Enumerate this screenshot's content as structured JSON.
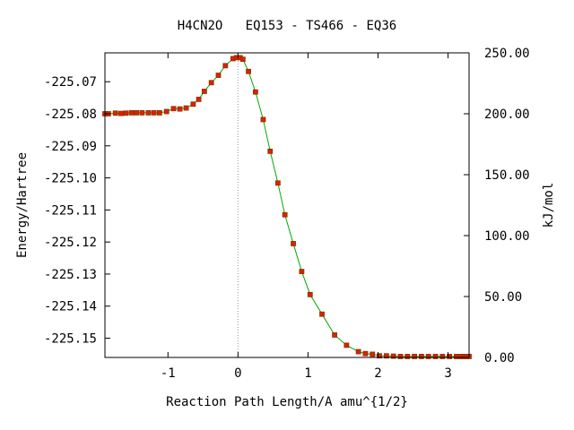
{
  "chart_data": {
    "type": "scatter",
    "title": "H4CN2O   EQ153 - TS466 - EQ36",
    "xlabel": "Reaction Path Length/A amu^{1/2}",
    "ylabel": "Energy/Hartree",
    "y2label": "kJ/mol",
    "xlim": [
      -1.9,
      3.3
    ],
    "ylim": [
      -225.156,
      -225.061
    ],
    "y2lim": [
      0.0,
      250.0
    ],
    "xticks": [
      -1,
      0,
      1,
      2,
      3
    ],
    "xtick_labels": [
      "-1",
      "0",
      "1",
      "2",
      "3"
    ],
    "yticks": [
      -225.07,
      -225.08,
      -225.09,
      -225.1,
      -225.11,
      -225.12,
      -225.13,
      -225.14,
      -225.15
    ],
    "ytick_labels": [
      "-225.07",
      "-225.08",
      "-225.09",
      "-225.10",
      "-225.11",
      "-225.12",
      "-225.13",
      "-225.14",
      "-225.15"
    ],
    "y2ticks": [
      0,
      50,
      100,
      150,
      200,
      250
    ],
    "y2tick_labels": [
      "0.00",
      "50.00",
      "100.00",
      "150.00",
      "200.00",
      "250.00"
    ],
    "ts_marker_x": 0.0,
    "grid": false,
    "legend": false,
    "colors": {
      "line": "#00aa00",
      "point_fill": "#dd2200",
      "point_edge": "#883300",
      "ts_line": "#999999"
    },
    "series": [
      {
        "x": [
          -1.9,
          -1.85,
          -1.75,
          -1.67,
          -1.6,
          -1.52,
          -1.45,
          -1.37,
          -1.28,
          -1.2,
          -1.12,
          -1.02,
          -0.92,
          -0.83,
          -0.74,
          -0.64,
          -0.56,
          -0.48,
          -0.38,
          -0.28,
          -0.18,
          -0.07,
          -0.02,
          0.03,
          0.07,
          0.15,
          0.25,
          0.36,
          0.46,
          0.57,
          0.67,
          0.79,
          0.91,
          1.03,
          1.2,
          1.38,
          1.55,
          1.72,
          1.82,
          1.92,
          2.02,
          2.12,
          2.22,
          2.32,
          2.42,
          2.52,
          2.62,
          2.72,
          2.82,
          2.92,
          3.02,
          3.12,
          3.18,
          3.22,
          3.26,
          3.3
        ],
        "y": [
          -225.08,
          -225.08,
          -225.0798,
          -225.0799,
          -225.0798,
          -225.0797,
          -225.0797,
          -225.0797,
          -225.0797,
          -225.0797,
          -225.0797,
          -225.0793,
          -225.0784,
          -225.0785,
          -225.0782,
          -225.077,
          -225.0755,
          -225.073,
          -225.0703,
          -225.068,
          -225.065,
          -225.0628,
          -225.0625,
          -225.0625,
          -225.063,
          -225.0668,
          -225.0732,
          -225.0818,
          -225.0917,
          -225.1016,
          -225.1115,
          -225.1205,
          -225.1292,
          -225.1364,
          -225.1425,
          -225.149,
          -225.1522,
          -225.1542,
          -225.1548,
          -225.155,
          -225.1555,
          -225.1555,
          -225.1556,
          -225.1557,
          -225.1557,
          -225.1557,
          -225.1557,
          -225.1557,
          -225.1557,
          -225.1557,
          -225.1557,
          -225.1557,
          -225.1557,
          -225.1557,
          -225.1557,
          -225.1557
        ]
      }
    ]
  }
}
